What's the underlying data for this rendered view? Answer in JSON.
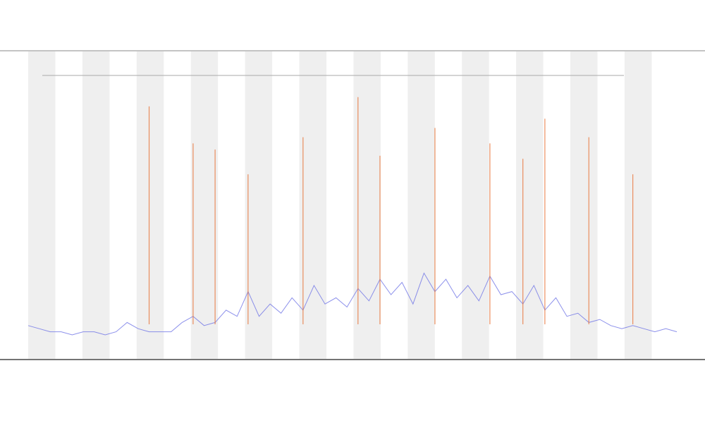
{
  "chart_data": {
    "type": "line",
    "ylim": [
      0,
      100
    ],
    "series": [
      {
        "color": "#6f74e6",
        "values": [
          11,
          10,
          9,
          9,
          8,
          9,
          9,
          8,
          9,
          12,
          10,
          9,
          9,
          9,
          12,
          14,
          11,
          12,
          16,
          14,
          22,
          14,
          18,
          15,
          20,
          16,
          24,
          18,
          20,
          17,
          23,
          19,
          26,
          21,
          25,
          18,
          28,
          22,
          26,
          20,
          24,
          19,
          27,
          21,
          22,
          18,
          24,
          16,
          20,
          14,
          15,
          12,
          13,
          11,
          10,
          11,
          10,
          9,
          10,
          9
        ]
      },
      {
        "color": "#e8753a",
        "style": "stem",
        "values": [
          null,
          null,
          null,
          null,
          null,
          null,
          null,
          null,
          null,
          null,
          null,
          82,
          null,
          null,
          null,
          70,
          null,
          68,
          null,
          null,
          60,
          null,
          null,
          null,
          null,
          72,
          null,
          null,
          null,
          null,
          85,
          null,
          66,
          null,
          null,
          null,
          null,
          75,
          null,
          null,
          null,
          null,
          70,
          null,
          null,
          65,
          null,
          78,
          null,
          null,
          null,
          72,
          null,
          null,
          null,
          60,
          null,
          null,
          null,
          null
        ]
      }
    ]
  }
}
